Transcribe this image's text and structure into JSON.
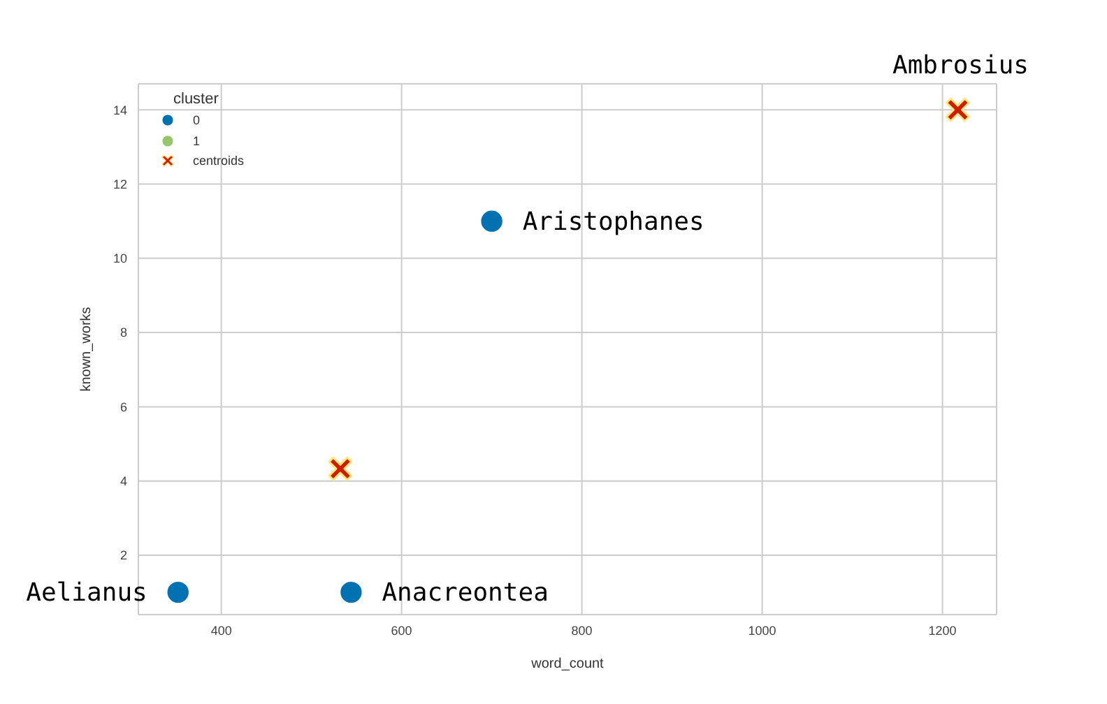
{
  "chart_data": {
    "type": "scatter",
    "xlabel": "word_count",
    "ylabel": "known_works",
    "legend_title": "cluster",
    "series": [
      {
        "name": "0",
        "color": "#0072b2",
        "marker": "circle",
        "x": [
          352,
          544,
          700
        ],
        "values": [
          1,
          1,
          11
        ]
      },
      {
        "name": "1",
        "color": "#96c56b",
        "marker": "circle",
        "x": [
          null
        ],
        "values": [
          null
        ]
      },
      {
        "name": "centroids",
        "color": "#d01c00",
        "marker": "cross",
        "x": [
          532,
          1217
        ],
        "values": [
          4.33,
          14
        ]
      }
    ],
    "xlim": [
      308,
      1260
    ],
    "xticks": [
      400,
      600,
      800,
      1000,
      1200
    ],
    "ylim": [
      0.4,
      14.7
    ],
    "yticks": [
      2,
      4,
      6,
      8,
      10,
      12,
      14
    ],
    "grid": true,
    "legend": "top left",
    "annotations": [
      {
        "text": "Aelianus",
        "x": 352,
        "y": 1
      },
      {
        "text": "Anacreontea",
        "x": 544,
        "y": 1
      },
      {
        "text": "Aristophanes",
        "x": 700,
        "y": 11
      },
      {
        "text": "Ambrosius",
        "x": 1217,
        "y": 14
      }
    ]
  }
}
